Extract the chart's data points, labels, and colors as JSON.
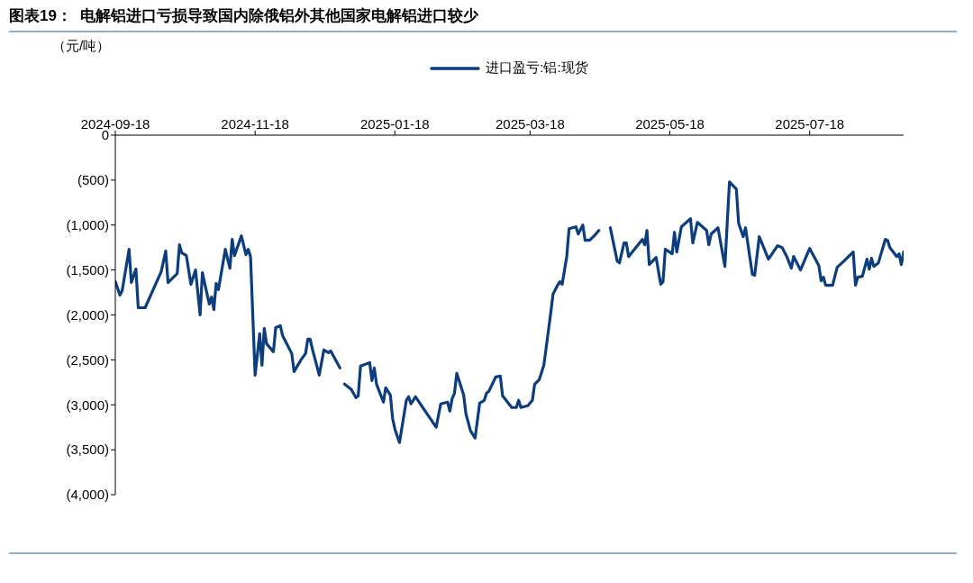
{
  "chart_data": {
    "type": "line",
    "title": "图表19：  电解铝进口亏损导致国内除俄铝外其他国家电解铝进口较少",
    "ylabel": "（元/吨）",
    "x": [
      "2024-09-18",
      "2024-09-20",
      "2024-09-21",
      "2024-09-24",
      "2024-09-25",
      "2024-09-27",
      "2024-09-28",
      "2024-10-01",
      "2024-10-08",
      "2024-10-10",
      "2024-10-11",
      "2024-10-15",
      "2024-10-16",
      "2024-10-17",
      "2024-10-19",
      "2024-10-21",
      "2024-10-23",
      "2024-10-25",
      "2024-10-26",
      "2024-10-29",
      "2024-10-30",
      "2024-10-31",
      "2024-11-01",
      "2024-11-02",
      "2024-11-05",
      "2024-11-07",
      "2024-11-08",
      "2024-11-09",
      "2024-11-12",
      "2024-11-14",
      "2024-11-15",
      "2024-11-16",
      "2024-11-18",
      "2024-11-20",
      "2024-11-21",
      "2024-11-22",
      "2024-11-23",
      "2024-11-26",
      "2024-11-27",
      "2024-11-29",
      "2024-11-30",
      "2024-12-04",
      "2024-12-05",
      "2024-12-08",
      "2024-12-10",
      "2024-12-11",
      "2024-12-12",
      "2024-12-13",
      "2024-12-16",
      "2024-12-18",
      "2024-12-20",
      "2024-12-21",
      "2024-12-25",
      "2024-12-26",
      "2024-12-27",
      "2024-12-30",
      "2025-01-01",
      "2025-01-02",
      "2025-01-03",
      "2025-01-07",
      "2025-01-08",
      "2025-01-09",
      "2025-01-10",
      "2025-01-13",
      "2025-01-14",
      "2025-01-16",
      "2025-01-17",
      "2025-01-18",
      "2025-01-20",
      "2025-01-23",
      "2025-01-24",
      "2025-01-25",
      "2025-01-27",
      "2025-02-05",
      "2025-02-07",
      "2025-02-10",
      "2025-02-11",
      "2025-02-12",
      "2025-02-13",
      "2025-02-14",
      "2025-02-17",
      "2025-02-18",
      "2025-02-20",
      "2025-02-22",
      "2025-02-24",
      "2025-02-26",
      "2025-02-27",
      "2025-02-28",
      "2025-03-03",
      "2025-03-05",
      "2025-03-06",
      "2025-03-10",
      "2025-03-12",
      "2025-03-13",
      "2025-03-14",
      "2025-03-17",
      "2025-03-19",
      "2025-03-20",
      "2025-03-22",
      "2025-03-24",
      "2025-03-27",
      "2025-03-28",
      "2025-03-30",
      "2025-03-31",
      "2025-04-01",
      "2025-04-03",
      "2025-04-04",
      "2025-04-07",
      "2025-04-08",
      "2025-04-10",
      "2025-04-11",
      "2025-04-13",
      "2025-04-15",
      "2025-04-17",
      "2025-04-19",
      "2025-04-22",
      "2025-04-25",
      "2025-04-26",
      "2025-04-28",
      "2025-04-29",
      "2025-04-30",
      "2025-05-06",
      "2025-05-07",
      "2025-05-08",
      "2025-05-09",
      "2025-05-12",
      "2025-05-14",
      "2025-05-15",
      "2025-05-16",
      "2025-05-19",
      "2025-05-20",
      "2025-05-21",
      "2025-05-23",
      "2025-05-27",
      "2025-05-28",
      "2025-05-30",
      "2025-06-03",
      "2025-06-04",
      "2025-06-05",
      "2025-06-08",
      "2025-06-11",
      "2025-06-13",
      "2025-06-16",
      "2025-06-17",
      "2025-06-19",
      "2025-06-20",
      "2025-06-23",
      "2025-06-24",
      "2025-06-26",
      "2025-06-30",
      "2025-07-04",
      "2025-07-06",
      "2025-07-08",
      "2025-07-10",
      "2025-07-11",
      "2025-07-14",
      "2025-07-18",
      "2025-07-22",
      "2025-07-23",
      "2025-07-24",
      "2025-07-25",
      "2025-07-28",
      "2025-07-30",
      "2025-08-02",
      "2025-08-06",
      "2025-08-07",
      "2025-08-08",
      "2025-08-10",
      "2025-08-12",
      "2025-08-13",
      "2025-08-14",
      "2025-08-15",
      "2025-08-17",
      "2025-08-20",
      "2025-08-21",
      "2025-08-22",
      "2025-08-25",
      "2025-08-26",
      "2025-08-27",
      "2025-08-28"
    ],
    "series": [
      {
        "name": "进口盈亏:铝:现货",
        "color": "#0b3d7f",
        "values": [
          -1630,
          -1780,
          -1730,
          -1270,
          -1640,
          -1490,
          -1920,
          -1920,
          -1520,
          -1290,
          -1640,
          -1540,
          -1220,
          -1310,
          -1340,
          -1660,
          -1500,
          -2000,
          -1530,
          -1880,
          -1800,
          -1940,
          -1650,
          -1720,
          -1270,
          -1480,
          -1160,
          -1340,
          -1120,
          -1330,
          -1270,
          -1350,
          -2670,
          -2210,
          -2560,
          -2150,
          -2320,
          -2410,
          -2140,
          -2120,
          -2230,
          -2430,
          -2630,
          -2500,
          -2430,
          -2270,
          -2270,
          -2380,
          -2670,
          -2390,
          -2420,
          -2400,
          -2590,
          null,
          -2770,
          -2830,
          -2920,
          -2900,
          -2570,
          -2530,
          -2730,
          -2590,
          -2770,
          -2970,
          -2810,
          -2890,
          -3150,
          -3270,
          -3420,
          -2950,
          -2910,
          -2990,
          -2910,
          -3250,
          -2990,
          -2970,
          -3070,
          -2930,
          -2870,
          -2650,
          -2890,
          -3100,
          -3290,
          -3370,
          -2980,
          -2950,
          -2870,
          -2850,
          -2690,
          -2680,
          -2900,
          -3030,
          -3030,
          -2950,
          -3030,
          -3010,
          -2950,
          -2770,
          -2720,
          -2560,
          -1980,
          -1770,
          -1670,
          -1630,
          -1660,
          -1350,
          -1040,
          -1020,
          -1100,
          -1000,
          -1170,
          -1170,
          -1120,
          -1060,
          null,
          -1030,
          -1400,
          -1420,
          -1200,
          -1200,
          -1350,
          -1160,
          -1220,
          -1060,
          -1440,
          -1360,
          -1660,
          -1630,
          -1270,
          -1320,
          -1080,
          -1300,
          -1020,
          -930,
          -1200,
          -970,
          -1060,
          -1220,
          -1100,
          -1030,
          -1460,
          -520,
          -600,
          -980,
          -1130,
          -1030,
          -1550,
          -1560,
          -1130,
          -1380,
          -1230,
          -1250,
          -1350,
          -1480,
          -1350,
          -1500,
          -1260,
          -1450,
          -1620,
          -1580,
          -1670,
          -1670,
          -1470,
          -1400,
          -1300,
          -1670,
          -1580,
          -1570,
          -1380,
          -1490,
          -1370,
          -1460,
          -1420,
          -1160,
          -1170,
          -1250,
          -1350,
          -1320,
          -1440,
          -1300
        ]
      }
    ],
    "xlim": [
      "2024-09-18",
      "2025-08-28"
    ],
    "xticks": [
      "2024-09-18",
      "2024-11-18",
      "2025-01-18",
      "2025-03-18",
      "2025-05-18",
      "2025-07-18"
    ],
    "ylim": [
      -4000,
      0
    ],
    "yticks": [
      0,
      {
        "value": -500,
        "label": "(500)"
      },
      {
        "value": -1000,
        "label": "(1,000)"
      },
      {
        "value": -1500,
        "label": "(1,500)"
      },
      {
        "value": -2000,
        "label": "(2,000)"
      },
      {
        "value": -2500,
        "label": "(2,500)"
      },
      {
        "value": -3000,
        "label": "(3,000)"
      },
      {
        "value": -3500,
        "label": "(3,500)"
      },
      {
        "value": -4000,
        "label": "(4,000)"
      }
    ],
    "grid": false,
    "legend": "top",
    "marker": "none",
    "line_style": "solid"
  }
}
